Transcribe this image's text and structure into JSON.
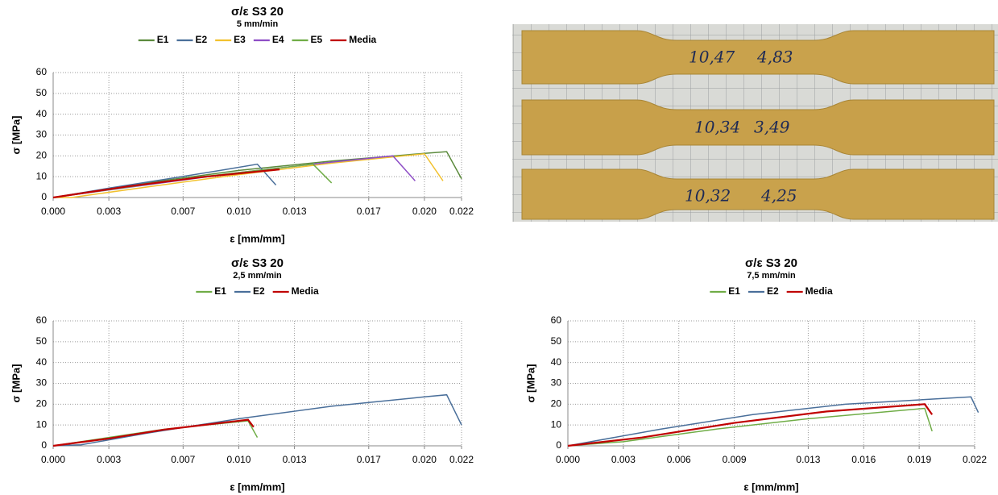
{
  "chart_data": [
    {
      "type": "line",
      "title": "σ/ε S3 20",
      "subtitle": "5 mm/min",
      "xlabel": "ε [mm/mm]",
      "ylabel": "σ [MPa]",
      "xlim": [
        0,
        0.022
      ],
      "ylim": [
        0,
        60
      ],
      "xticks": [
        {
          "value": 0,
          "label": "0.000"
        },
        {
          "value": 0.003,
          "label": "0.003"
        },
        {
          "value": 0.007,
          "label": "0.007"
        },
        {
          "value": 0.01,
          "label": "0.010"
        },
        {
          "value": 0.013,
          "label": "0.013"
        },
        {
          "value": 0.017,
          "label": "0.017"
        },
        {
          "value": 0.02,
          "label": "0.020"
        },
        {
          "value": 0.022,
          "label": "0.022"
        }
      ],
      "yticks": [
        0,
        10,
        20,
        30,
        40,
        50,
        60
      ],
      "grid": true,
      "legend": "top",
      "series": [
        {
          "name": "E1",
          "color": "#5b8a3c",
          "x": [
            0,
            0.005,
            0.01,
            0.015,
            0.02,
            0.0212,
            0.022
          ],
          "values": [
            0,
            7,
            13,
            17.5,
            21.2,
            22,
            9
          ]
        },
        {
          "name": "E2",
          "color": "#4a6f9a",
          "x": [
            0,
            0.003,
            0.006,
            0.009,
            0.011,
            0.012
          ],
          "values": [
            0,
            4.5,
            8.7,
            13,
            16,
            6
          ]
        },
        {
          "name": "E3",
          "color": "#f2c12e",
          "x": [
            0,
            0.001,
            0.005,
            0.01,
            0.015,
            0.02,
            0.021
          ],
          "values": [
            0,
            0,
            5,
            11,
            16.5,
            21,
            8
          ]
        },
        {
          "name": "E4",
          "color": "#8e4ec6",
          "x": [
            0,
            0.005,
            0.01,
            0.015,
            0.0183,
            0.0195
          ],
          "values": [
            0,
            6,
            12,
            17,
            20,
            8
          ]
        },
        {
          "name": "E5",
          "color": "#70ad47",
          "x": [
            0,
            0.004,
            0.008,
            0.012,
            0.014,
            0.015
          ],
          "values": [
            0,
            5,
            10,
            14,
            16,
            7
          ]
        },
        {
          "name": "Media",
          "color": "#c00000",
          "x": [
            0,
            0.004,
            0.008,
            0.0122
          ],
          "values": [
            0,
            5.3,
            9.8,
            13.5
          ]
        }
      ]
    },
    {
      "type": "line",
      "title": "σ/ε S3 20",
      "subtitle": "2,5 mm/min",
      "xlabel": "ε [mm/mm]",
      "ylabel": "σ [MPa]",
      "xlim": [
        0,
        0.022
      ],
      "ylim": [
        0,
        60
      ],
      "xticks": [
        {
          "value": 0,
          "label": "0.000"
        },
        {
          "value": 0.003,
          "label": "0.003"
        },
        {
          "value": 0.007,
          "label": "0.007"
        },
        {
          "value": 0.01,
          "label": "0.010"
        },
        {
          "value": 0.013,
          "label": "0.013"
        },
        {
          "value": 0.017,
          "label": "0.017"
        },
        {
          "value": 0.02,
          "label": "0.020"
        },
        {
          "value": 0.022,
          "label": "0.022"
        }
      ],
      "yticks": [
        0,
        10,
        20,
        30,
        40,
        50,
        60
      ],
      "grid": true,
      "legend": "top",
      "series": [
        {
          "name": "E1",
          "color": "#70ad47",
          "x": [
            0,
            0.003,
            0.006,
            0.0105,
            0.011
          ],
          "values": [
            0,
            4,
            8,
            12,
            4
          ]
        },
        {
          "name": "E2",
          "color": "#4a6f9a",
          "x": [
            0,
            0.0015,
            0.005,
            0.01,
            0.015,
            0.02,
            0.0212,
            0.022
          ],
          "values": [
            0,
            0.5,
            6,
            13,
            19,
            23.5,
            24.5,
            10
          ]
        },
        {
          "name": "Media",
          "color": "#c00000",
          "x": [
            0,
            0.003,
            0.006,
            0.0105,
            0.0108
          ],
          "values": [
            0,
            3.5,
            7.8,
            12.5,
            9
          ]
        }
      ]
    },
    {
      "type": "line",
      "title": "σ/ε S3 20",
      "subtitle": "7,5 mm/min",
      "xlabel": "ε [mm/mm]",
      "ylabel": "σ [MPa]",
      "xlim": [
        0,
        0.022
      ],
      "ylim": [
        0,
        60
      ],
      "xticks": [
        {
          "value": 0,
          "label": "0.000"
        },
        {
          "value": 0.003,
          "label": "0.003"
        },
        {
          "value": 0.006,
          "label": "0.006"
        },
        {
          "value": 0.009,
          "label": "0.009"
        },
        {
          "value": 0.013,
          "label": "0.013"
        },
        {
          "value": 0.016,
          "label": "0.016"
        },
        {
          "value": 0.019,
          "label": "0.019"
        },
        {
          "value": 0.022,
          "label": "0.022"
        }
      ],
      "yticks": [
        0,
        10,
        20,
        30,
        40,
        50,
        60
      ],
      "grid": true,
      "legend": "top",
      "series": [
        {
          "name": "E1",
          "color": "#70ad47",
          "x": [
            0,
            0.003,
            0.008,
            0.013,
            0.0193,
            0.0197
          ],
          "values": [
            0,
            2,
            8,
            13,
            18,
            7
          ]
        },
        {
          "name": "E2",
          "color": "#4a6f9a",
          "x": [
            0,
            0.005,
            0.01,
            0.015,
            0.0218,
            0.0222
          ],
          "values": [
            0,
            8,
            15,
            20,
            23.5,
            16
          ]
        },
        {
          "name": "Media",
          "color": "#c00000",
          "x": [
            0,
            0.004,
            0.009,
            0.014,
            0.0193,
            0.0197
          ],
          "values": [
            0,
            4,
            11,
            16.5,
            20,
            15
          ]
        }
      ]
    }
  ],
  "photo": {
    "labels": [
      "10,47",
      "4,83",
      "10,34",
      "3,49",
      "10,32",
      "4,25"
    ]
  }
}
